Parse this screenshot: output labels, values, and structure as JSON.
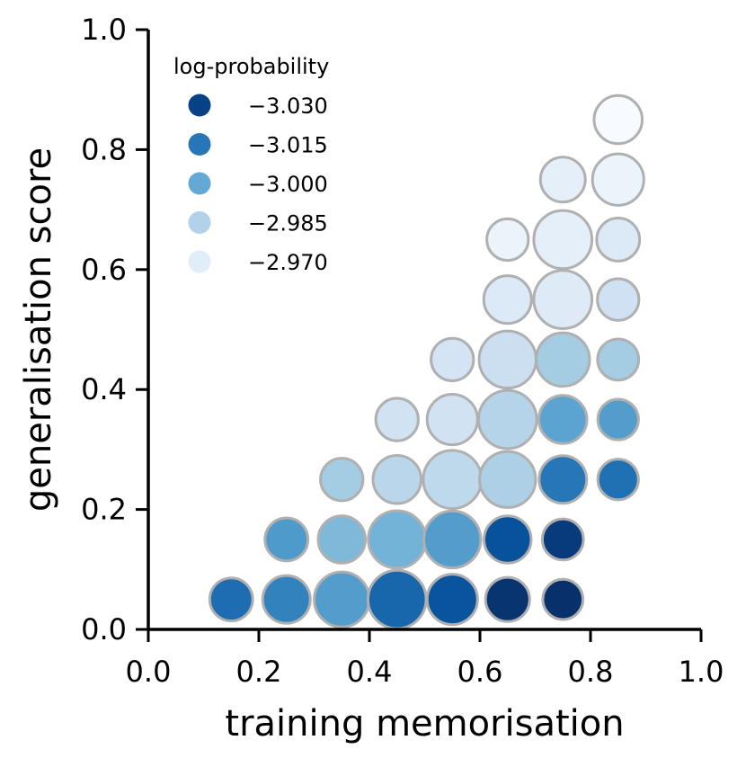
{
  "chart_data": {
    "type": "scatter",
    "xlabel": "training memorisation",
    "ylabel": "generalisation score",
    "xlim": [
      0.0,
      1.0
    ],
    "ylim": [
      0.0,
      1.0
    ],
    "xticks": [
      "0.0",
      "0.2",
      "0.4",
      "0.6",
      "0.8",
      "1.0"
    ],
    "yticks": [
      "0.0",
      "0.2",
      "0.4",
      "0.6",
      "0.8",
      "1.0"
    ],
    "grid": false,
    "legend": {
      "title": "log-probability",
      "position": "top-left",
      "entries": [
        {
          "label": "−3.030",
          "value": -3.03
        },
        {
          "label": "−3.015",
          "value": -3.015
        },
        {
          "label": "−3.000",
          "value": -3.0
        },
        {
          "label": "−2.985",
          "value": -2.985
        },
        {
          "label": "−2.970",
          "value": -2.97
        }
      ]
    },
    "color_scale": {
      "name": "Blues",
      "min": -3.035,
      "max": -2.962
    },
    "points": [
      {
        "x": 0.15,
        "y": 0.05,
        "size": 0.3,
        "color": -3.018
      },
      {
        "x": 0.25,
        "y": 0.05,
        "size": 0.5,
        "color": -3.012
      },
      {
        "x": 0.35,
        "y": 0.05,
        "size": 0.82,
        "color": -3.004
      },
      {
        "x": 0.45,
        "y": 0.05,
        "size": 0.95,
        "color": -3.02
      },
      {
        "x": 0.55,
        "y": 0.05,
        "size": 0.62,
        "color": -3.025
      },
      {
        "x": 0.65,
        "y": 0.05,
        "size": 0.35,
        "color": -3.034
      },
      {
        "x": 0.75,
        "y": 0.05,
        "size": 0.18,
        "color": -3.035
      },
      {
        "x": 0.25,
        "y": 0.15,
        "size": 0.3,
        "color": -3.005
      },
      {
        "x": 0.35,
        "y": 0.15,
        "size": 0.48,
        "color": -2.995
      },
      {
        "x": 0.45,
        "y": 0.15,
        "size": 0.92,
        "color": -2.997
      },
      {
        "x": 0.55,
        "y": 0.15,
        "size": 0.9,
        "color": -3.004
      },
      {
        "x": 0.65,
        "y": 0.15,
        "size": 0.48,
        "color": -3.026
      },
      {
        "x": 0.75,
        "y": 0.15,
        "size": 0.22,
        "color": -3.032
      },
      {
        "x": 0.35,
        "y": 0.25,
        "size": 0.28,
        "color": -2.988
      },
      {
        "x": 0.45,
        "y": 0.25,
        "size": 0.52,
        "color": -2.983
      },
      {
        "x": 0.55,
        "y": 0.25,
        "size": 0.95,
        "color": -2.982
      },
      {
        "x": 0.65,
        "y": 0.25,
        "size": 0.86,
        "color": -2.986
      },
      {
        "x": 0.75,
        "y": 0.25,
        "size": 0.5,
        "color": -3.015
      },
      {
        "x": 0.85,
        "y": 0.25,
        "size": 0.2,
        "color": -3.017
      },
      {
        "x": 0.45,
        "y": 0.35,
        "size": 0.28,
        "color": -2.976
      },
      {
        "x": 0.55,
        "y": 0.35,
        "size": 0.62,
        "color": -2.976
      },
      {
        "x": 0.65,
        "y": 0.35,
        "size": 0.95,
        "color": -2.984
      },
      {
        "x": 0.75,
        "y": 0.35,
        "size": 0.52,
        "color": -3.002
      },
      {
        "x": 0.85,
        "y": 0.35,
        "size": 0.2,
        "color": -3.004
      },
      {
        "x": 0.55,
        "y": 0.45,
        "size": 0.28,
        "color": -2.975
      },
      {
        "x": 0.65,
        "y": 0.45,
        "size": 0.9,
        "color": -2.978
      },
      {
        "x": 0.75,
        "y": 0.45,
        "size": 0.75,
        "color": -2.988
      },
      {
        "x": 0.85,
        "y": 0.45,
        "size": 0.22,
        "color": -2.988
      },
      {
        "x": 0.65,
        "y": 0.55,
        "size": 0.5,
        "color": -2.972
      },
      {
        "x": 0.75,
        "y": 0.55,
        "size": 0.95,
        "color": -2.971
      },
      {
        "x": 0.85,
        "y": 0.55,
        "size": 0.24,
        "color": -2.977
      },
      {
        "x": 0.65,
        "y": 0.65,
        "size": 0.24,
        "color": -2.966
      },
      {
        "x": 0.75,
        "y": 0.65,
        "size": 0.95,
        "color": -2.969
      },
      {
        "x": 0.85,
        "y": 0.65,
        "size": 0.3,
        "color": -2.972
      },
      {
        "x": 0.75,
        "y": 0.75,
        "size": 0.38,
        "color": -2.969
      },
      {
        "x": 0.85,
        "y": 0.75,
        "size": 0.66,
        "color": -2.966
      },
      {
        "x": 0.85,
        "y": 0.85,
        "size": 0.52,
        "color": -2.962
      }
    ]
  }
}
